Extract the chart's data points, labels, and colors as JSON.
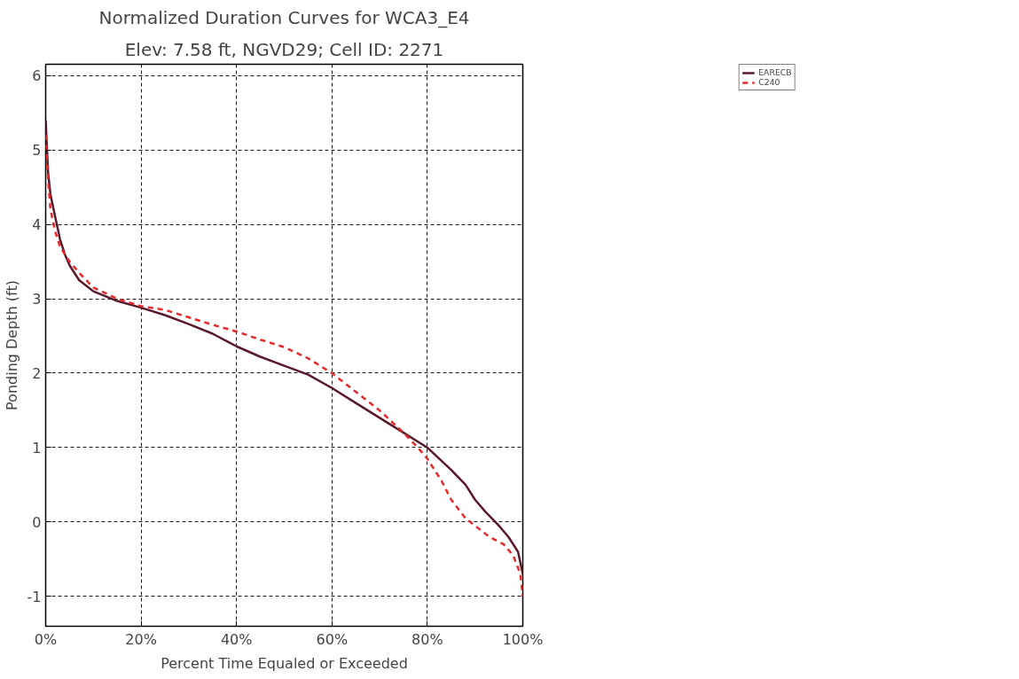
{
  "chart_data": {
    "type": "line",
    "title": "Normalized Duration Curves for WCA3_E4",
    "subtitle": "Elev: 7.58 ft, NGVD29; Cell ID: 2271",
    "xlabel": "Percent Time Equaled or Exceeded",
    "ylabel": "Ponding Depth (ft)",
    "xlim": [
      0,
      100
    ],
    "ylim": [
      -1.4,
      6.15
    ],
    "xticks": [
      {
        "value": 0,
        "label": "0%"
      },
      {
        "value": 20,
        "label": "20%"
      },
      {
        "value": 40,
        "label": "40%"
      },
      {
        "value": 60,
        "label": "60%"
      },
      {
        "value": 80,
        "label": "80%"
      },
      {
        "value": 100,
        "label": "100%"
      }
    ],
    "yticks": [
      -1,
      0,
      1,
      2,
      3,
      4,
      5,
      6
    ],
    "grid": true,
    "legend": "top right",
    "marker": "none",
    "series": [
      {
        "name": "EARECB",
        "color": "#5a1a2a",
        "line_style": "solid",
        "x": [
          0,
          0.5,
          1,
          2,
          3,
          4,
          5,
          7,
          10,
          15,
          20,
          25,
          30,
          35,
          40,
          45,
          50,
          55,
          60,
          65,
          70,
          75,
          80,
          85,
          88,
          90,
          92,
          95,
          97,
          99,
          100
        ],
        "values": [
          5.4,
          4.7,
          4.4,
          4.1,
          3.8,
          3.6,
          3.45,
          3.25,
          3.1,
          2.97,
          2.88,
          2.78,
          2.66,
          2.53,
          2.36,
          2.22,
          2.1,
          1.98,
          1.8,
          1.6,
          1.4,
          1.2,
          1.0,
          0.7,
          0.5,
          0.3,
          0.15,
          -0.05,
          -0.2,
          -0.4,
          -0.7
        ]
      },
      {
        "name": "C240",
        "color": "#e8282a",
        "line_style": "dashed",
        "x": [
          0,
          0.5,
          1,
          2,
          3,
          5,
          7,
          10,
          15,
          20,
          25,
          30,
          35,
          40,
          45,
          50,
          55,
          60,
          65,
          70,
          75,
          78,
          80,
          83,
          85,
          88,
          90,
          93,
          96,
          98,
          99.5,
          100
        ],
        "values": [
          5.2,
          4.6,
          4.2,
          3.9,
          3.7,
          3.5,
          3.35,
          3.15,
          3.0,
          2.9,
          2.85,
          2.75,
          2.65,
          2.56,
          2.45,
          2.35,
          2.2,
          2.0,
          1.75,
          1.5,
          1.2,
          1.0,
          0.85,
          0.55,
          0.3,
          0.05,
          -0.05,
          -0.2,
          -0.3,
          -0.45,
          -0.7,
          -1.0
        ]
      }
    ]
  }
}
